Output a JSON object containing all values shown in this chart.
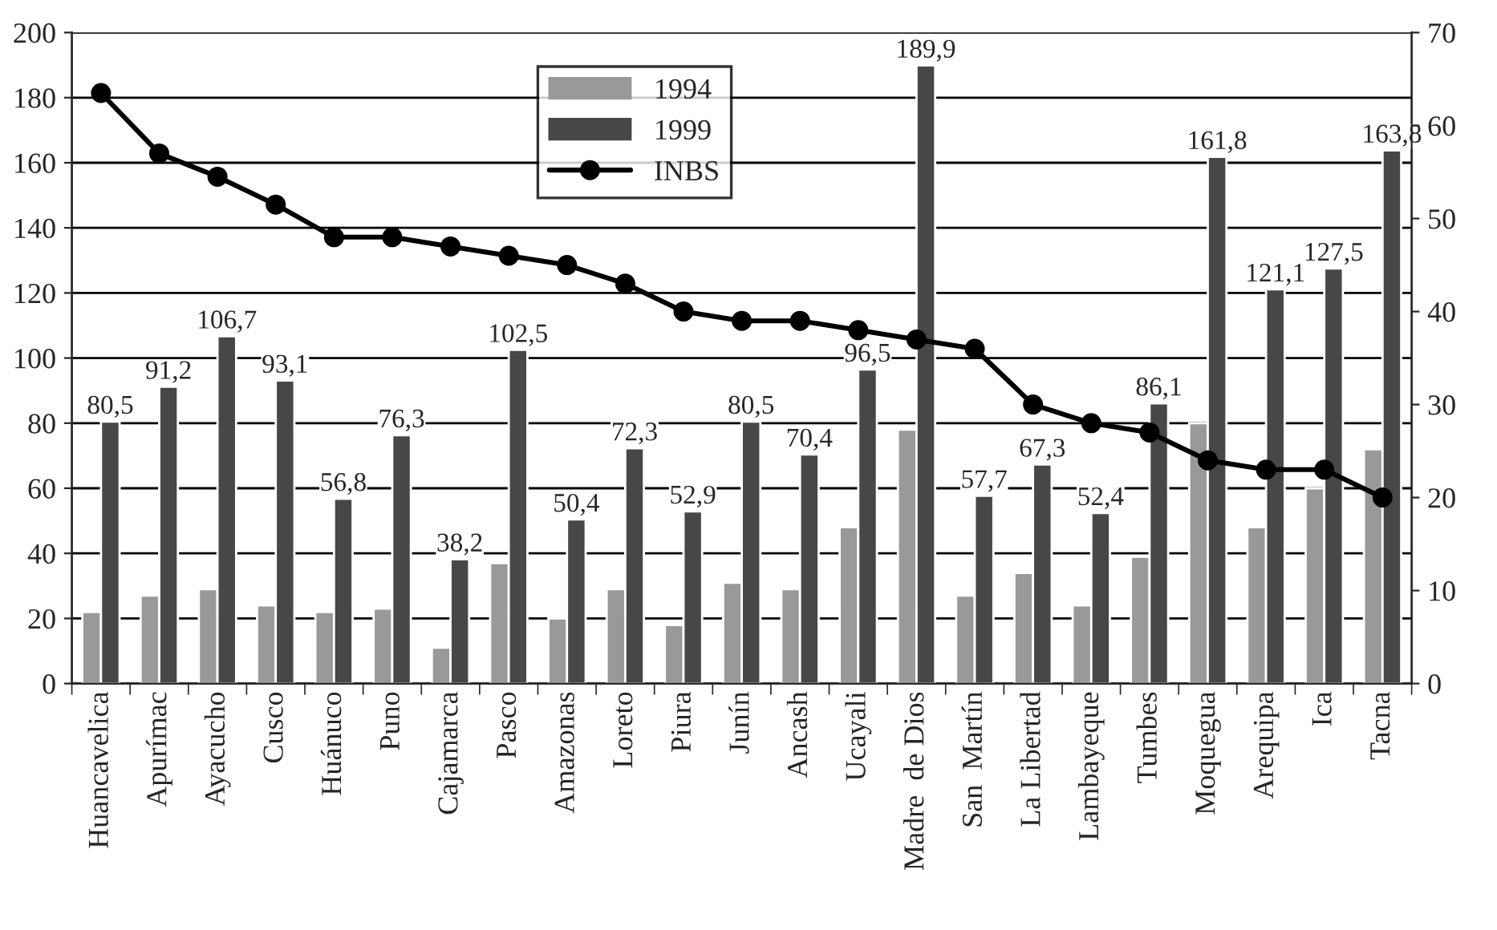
{
  "chart_data": {
    "type": "bar",
    "categories": [
      "Huancavelica",
      "Apurímac",
      "Ayacucho",
      "Cusco",
      "Huánuco",
      "Puno",
      "Cajamarca",
      "Pasco",
      "Amazonas",
      "Loreto",
      "Piura",
      "Junín",
      "Ancash",
      "Ucayali",
      "Madre  de Dios",
      "San  Martín",
      "La Libertad",
      "Lambayeque",
      "Tumbes",
      "Moquegua",
      "Arequipa",
      "Ica",
      "Tacna"
    ],
    "series": [
      {
        "name": "1994",
        "type": "bar",
        "color": "#999999",
        "values": [
          22,
          27,
          29,
          24,
          22,
          23,
          11,
          37,
          20,
          29,
          18,
          31,
          29,
          48,
          78,
          27,
          34,
          24,
          39,
          80,
          48,
          60,
          72
        ]
      },
      {
        "name": "1999",
        "type": "bar",
        "color": "#474747",
        "values": [
          80.5,
          91.2,
          106.7,
          93.1,
          56.8,
          76.3,
          38.2,
          102.5,
          50.4,
          72.3,
          52.9,
          80.5,
          70.4,
          96.5,
          189.9,
          57.7,
          67.3,
          52.4,
          86.1,
          161.8,
          121.1,
          127.5,
          163.8
        ],
        "value_labels": [
          "80,5",
          "91,2",
          "106,7",
          "93,1",
          "56,8",
          "76,3",
          "38,2",
          "102,5",
          "50,4",
          "72,3",
          "52,9",
          "80,5",
          "70,4",
          "96,5",
          "189,9",
          "57,7",
          "67,3",
          "52,4",
          "86,1",
          "161,8",
          "121,1",
          "127,5",
          "163,8"
        ]
      },
      {
        "name": "INBS",
        "type": "line",
        "axis": "y2",
        "color": "#000000",
        "marker": "circle",
        "values": [
          63.5,
          57,
          54.5,
          51.5,
          48,
          48,
          47,
          46,
          45,
          43,
          40,
          39,
          39,
          38,
          37,
          36,
          30,
          28,
          27,
          24,
          23,
          23,
          20
        ]
      }
    ],
    "ylim": [
      0,
      200
    ],
    "yticks": [
      0,
      20,
      40,
      60,
      80,
      100,
      120,
      140,
      160,
      180,
      200
    ],
    "y2lim": [
      0,
      70
    ],
    "y2ticks": [
      0,
      10,
      20,
      30,
      40,
      50,
      60,
      70
    ],
    "grid": "y",
    "legend": "top"
  }
}
